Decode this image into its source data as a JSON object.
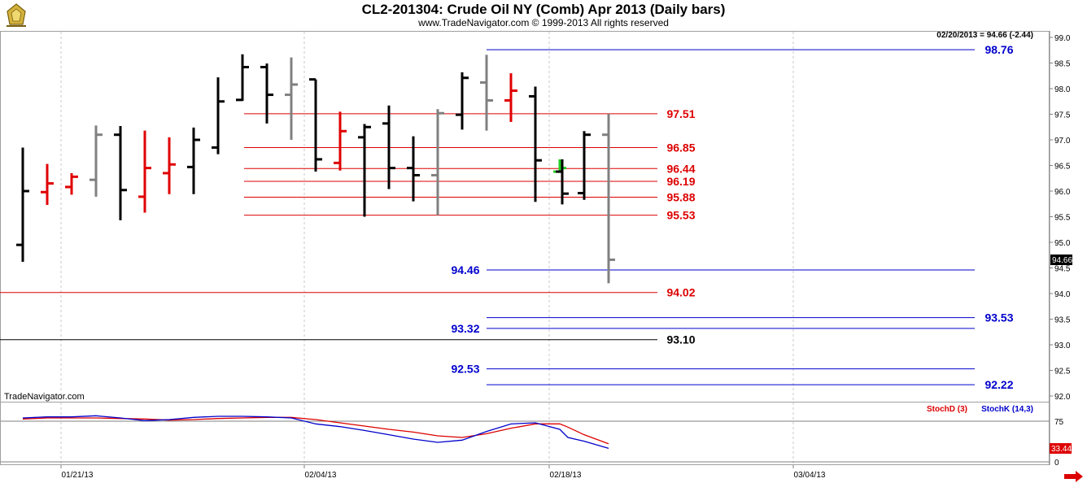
{
  "header": {
    "title": "CL2-201304:  Crude Oil NY (Comb) Apr 2013  (Daily bars)",
    "subtitle": "www.TradeNavigator.com © 1999-2013 All rights reserved"
  },
  "watermark": "TradeNavigator.com",
  "info_readout": "02/20/2013 = 94.66 (-2.44)",
  "last_price_tag": "94.66",
  "colors": {
    "up_bar": "#000000",
    "down_bar": "#e00000",
    "inside_bar": "#808080",
    "green_tick": "#22cc22",
    "blue_level": "#0000cc",
    "red_level": "#dd0000",
    "black_level": "#000000",
    "stoch_d": "#dd0000",
    "stoch_k": "#0000cc"
  },
  "chart_data": [
    {
      "type": "ohlc",
      "ylim": [
        91.8,
        99.15
      ],
      "y_ticks": [
        "99.0",
        "98.5",
        "98.0",
        "97.5",
        "97.0",
        "96.5",
        "96.0",
        "95.5",
        "95.0",
        "94.5",
        "94.0",
        "93.5",
        "93.0",
        "92.5",
        "92.0"
      ],
      "y_tick_values": [
        99.0,
        98.5,
        98.0,
        97.5,
        97.0,
        96.5,
        96.0,
        95.5,
        95.0,
        94.5,
        94.0,
        93.5,
        93.0,
        92.5,
        92.0
      ],
      "x_tick_labels": [
        "01/21/13",
        "02/04/13",
        "02/18/13",
        "03/04/13"
      ],
      "x_tick_index": [
        2,
        12,
        22,
        32
      ],
      "bars": [
        {
          "date": "01/17/13",
          "o": 94.95,
          "h": 96.85,
          "l": 94.62,
          "c": 96.0,
          "color": "black"
        },
        {
          "date": "01/18/13",
          "o": 95.98,
          "h": 96.53,
          "l": 95.73,
          "c": 96.15,
          "color": "red"
        },
        {
          "date": "01/21/13",
          "o": 96.08,
          "h": 96.35,
          "l": 95.93,
          "c": 96.28,
          "color": "red"
        },
        {
          "date": "01/22/13",
          "o": 96.22,
          "h": 97.28,
          "l": 95.89,
          "c": 97.1,
          "color": "gray"
        },
        {
          "date": "01/23/13",
          "o": 97.1,
          "h": 97.27,
          "l": 95.43,
          "c": 96.02,
          "color": "black"
        },
        {
          "date": "01/24/13",
          "o": 95.89,
          "h": 97.18,
          "l": 95.58,
          "c": 96.45,
          "color": "red"
        },
        {
          "date": "01/25/13",
          "o": 96.35,
          "h": 97.05,
          "l": 95.94,
          "c": 96.52,
          "color": "red"
        },
        {
          "date": "01/28/13",
          "o": 96.47,
          "h": 97.24,
          "l": 95.94,
          "c": 97.0,
          "color": "black"
        },
        {
          "date": "01/29/13",
          "o": 96.85,
          "h": 98.22,
          "l": 96.72,
          "c": 97.75,
          "color": "black"
        },
        {
          "date": "01/30/13",
          "o": 97.78,
          "h": 98.67,
          "l": 97.76,
          "c": 98.42,
          "color": "black"
        },
        {
          "date": "01/31/13",
          "o": 98.42,
          "h": 98.49,
          "l": 97.32,
          "c": 97.88,
          "color": "black"
        },
        {
          "date": "02/01/13",
          "o": 97.88,
          "h": 98.61,
          "l": 97.0,
          "c": 98.08,
          "color": "gray"
        },
        {
          "date": "02/04/13",
          "o": 98.18,
          "h": 98.18,
          "l": 96.38,
          "c": 96.62,
          "color": "black"
        },
        {
          "date": "02/05/13",
          "o": 96.55,
          "h": 97.55,
          "l": 96.4,
          "c": 97.17,
          "color": "red"
        },
        {
          "date": "02/06/13",
          "o": 97.05,
          "h": 97.31,
          "l": 95.5,
          "c": 97.25,
          "color": "black"
        },
        {
          "date": "02/07/13",
          "o": 97.32,
          "h": 97.67,
          "l": 96.04,
          "c": 96.45,
          "color": "black"
        },
        {
          "date": "02/08/13",
          "o": 96.45,
          "h": 97.07,
          "l": 95.8,
          "c": 96.31,
          "color": "black"
        },
        {
          "date": "02/11/13",
          "o": 96.31,
          "h": 97.6,
          "l": 95.53,
          "c": 97.52,
          "color": "gray"
        },
        {
          "date": "02/12/13",
          "o": 97.49,
          "h": 98.32,
          "l": 97.2,
          "c": 98.21,
          "color": "black"
        },
        {
          "date": "02/13/13",
          "o": 98.12,
          "h": 98.66,
          "l": 97.18,
          "c": 97.77,
          "color": "gray"
        },
        {
          "date": "02/14/13",
          "o": 97.77,
          "h": 98.3,
          "l": 97.35,
          "c": 97.96,
          "color": "red"
        },
        {
          "date": "02/15/13",
          "o": 97.85,
          "h": 98.04,
          "l": 95.79,
          "c": 96.6,
          "color": "black"
        },
        {
          "date": "02/18/13",
          "o": 96.38,
          "h": 96.62,
          "l": 96.38,
          "c": 96.45,
          "color": "green"
        },
        {
          "date": "02/19/13",
          "o": 96.38,
          "h": 96.62,
          "l": 95.74,
          "c": 95.95,
          "color": "black"
        },
        {
          "date": "02/19/13",
          "o": 95.96,
          "h": 97.17,
          "l": 95.83,
          "c": 97.1,
          "color": "black"
        },
        {
          "date": "02/20/13",
          "o": 97.1,
          "h": 97.51,
          "l": 94.2,
          "c": 94.66,
          "color": "gray"
        }
      ],
      "levels": [
        {
          "label": "98.76",
          "value": 98.76,
          "color": "blue"
        },
        {
          "label": "97.51",
          "value": 97.51,
          "color": "red"
        },
        {
          "label": "96.85",
          "value": 96.85,
          "color": "red"
        },
        {
          "label": "96.44",
          "value": 96.44,
          "color": "red"
        },
        {
          "label": "96.19",
          "value": 96.19,
          "color": "red"
        },
        {
          "label": "95.88",
          "value": 95.88,
          "color": "red"
        },
        {
          "label": "95.53",
          "value": 95.53,
          "color": "red"
        },
        {
          "label": "94.46",
          "value": 94.46,
          "color": "blue"
        },
        {
          "label": "94.02",
          "value": 94.02,
          "color": "red"
        },
        {
          "label": "93.53",
          "value": 93.53,
          "color": "blue"
        },
        {
          "label": "93.32",
          "value": 93.32,
          "color": "blue"
        },
        {
          "label": "93.10",
          "value": 93.1,
          "color": "black"
        },
        {
          "label": "92.53",
          "value": 92.53,
          "color": "blue"
        },
        {
          "label": "92.22",
          "value": 92.22,
          "color": "blue"
        }
      ]
    },
    {
      "type": "line",
      "title": "Stochastic",
      "ylim": [
        -5,
        100
      ],
      "y_ticks": [
        "75",
        "0"
      ],
      "y_tick_values": [
        75,
        0
      ],
      "legend": [
        "StochD (3)",
        "StochK (14,3)"
      ],
      "last_value_tag": "33.44",
      "series": [
        {
          "name": "StochD (3)",
          "color": "red",
          "values": [
            79,
            81,
            81,
            81,
            80,
            79,
            77,
            78,
            80,
            81,
            82,
            82,
            78,
            72,
            66,
            60,
            55,
            48,
            45,
            52,
            62,
            70,
            70,
            64,
            50,
            33.44
          ]
        },
        {
          "name": "StochK (14,3)",
          "color": "blue",
          "values": [
            81,
            83,
            83,
            85,
            81,
            76,
            78,
            82,
            84,
            84,
            83,
            81,
            70,
            65,
            58,
            50,
            42,
            36,
            40,
            56,
            70,
            72,
            60,
            45,
            38,
            25
          ]
        }
      ]
    }
  ]
}
